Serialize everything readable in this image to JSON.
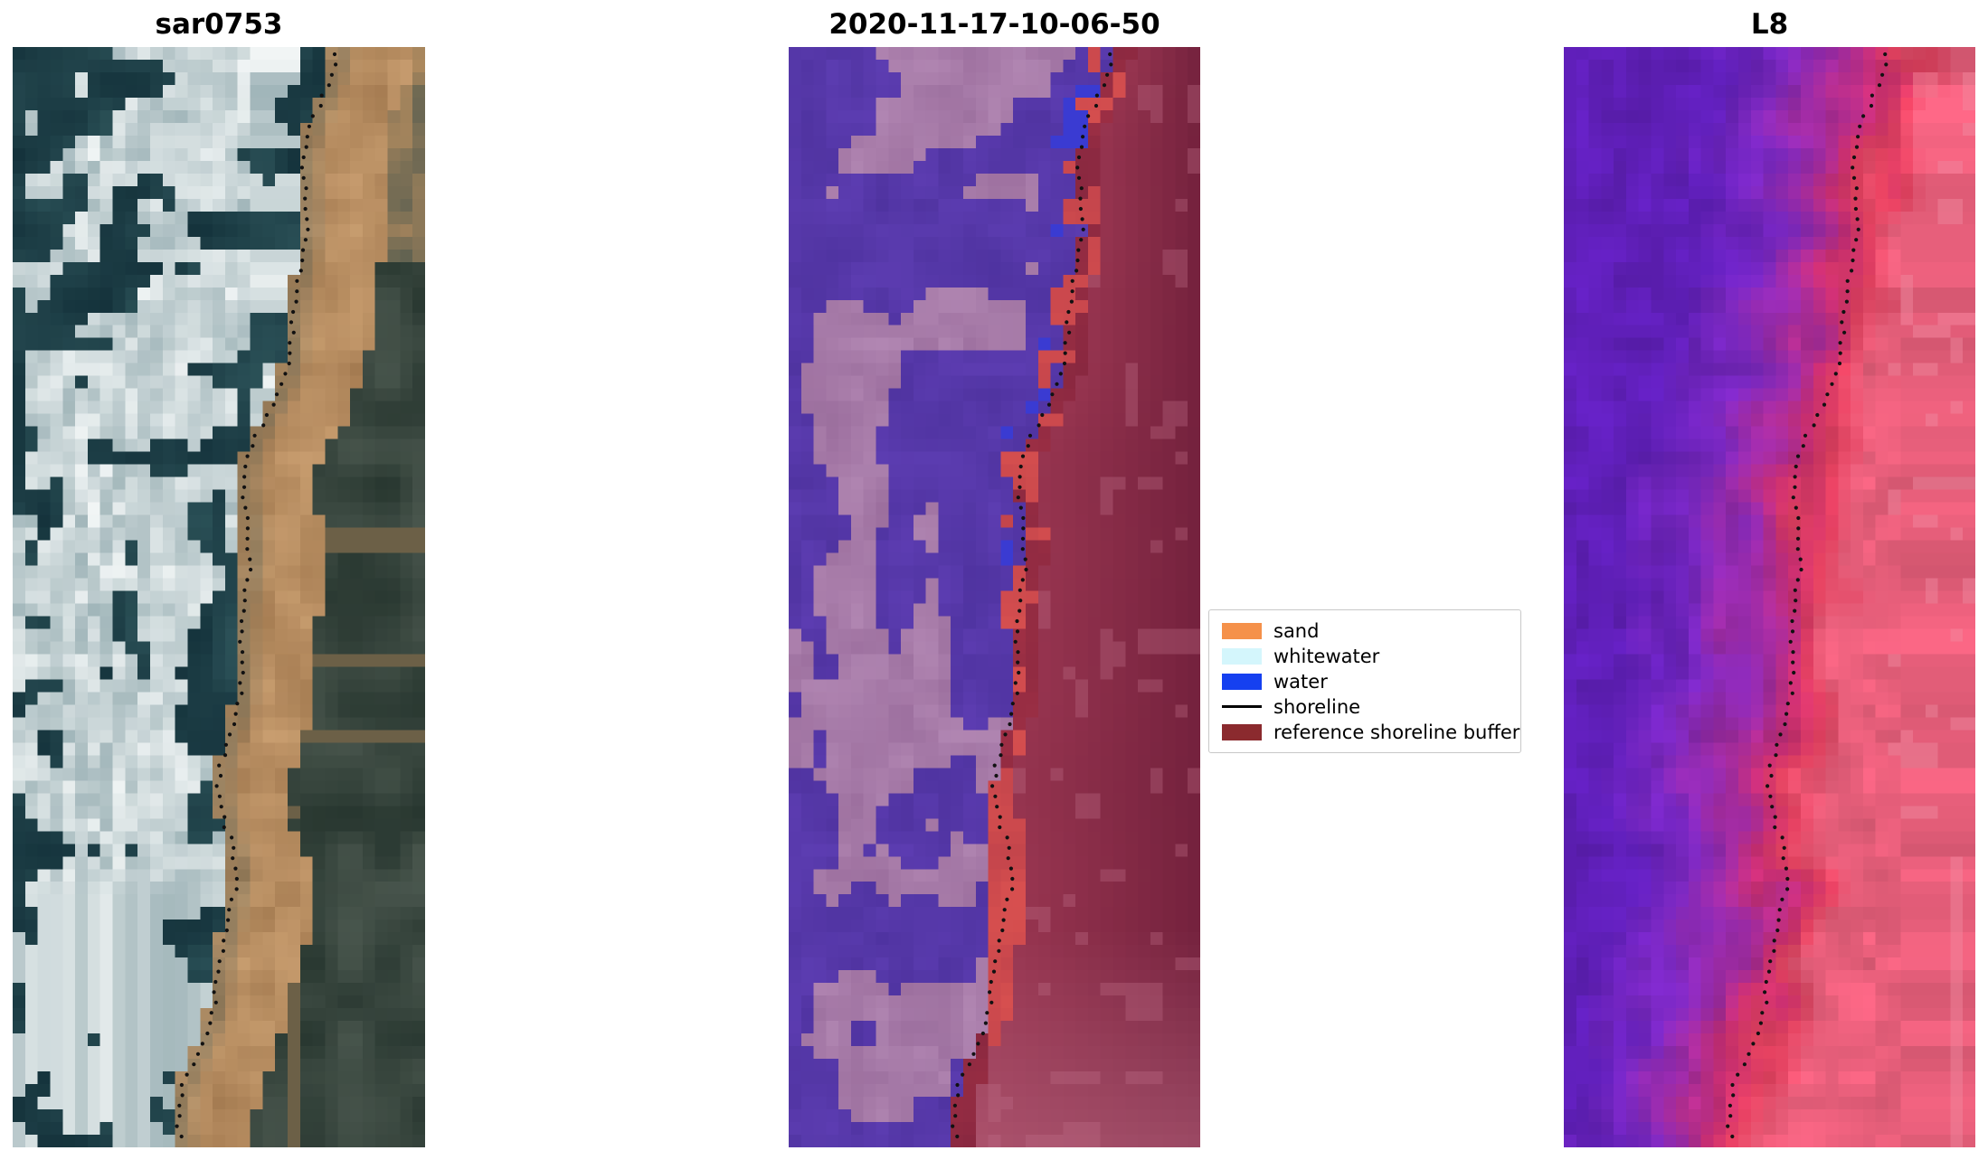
{
  "figure": {
    "background": "#ffffff",
    "panels": [
      {
        "id": "sar",
        "title": "sar0753",
        "type": "rgb-satellite-image"
      },
      {
        "id": "classification",
        "title": "2020-11-17-10-06-50",
        "type": "classification-overlay"
      },
      {
        "id": "l8",
        "title": "L8",
        "type": "false-color-image"
      }
    ],
    "legend": {
      "items": [
        {
          "label": "sand",
          "swatch": "#f5914a",
          "kind": "patch"
        },
        {
          "label": "whitewater",
          "swatch": "#d4f6fc",
          "kind": "patch"
        },
        {
          "label": "water",
          "swatch": "#1540f0",
          "kind": "patch"
        },
        {
          "label": "shoreline",
          "swatch": "#000000",
          "kind": "line"
        },
        {
          "label": "reference shoreline buffer",
          "swatch": "#8b2a2e",
          "kind": "patch"
        }
      ]
    },
    "palettes": {
      "sar": {
        "ocean_dark": "#14323b",
        "ocean_mid": "#2f565c",
        "surf_white": "#f2f6f6",
        "surf_gray": "#9fb4b8",
        "sand_light": "#c89d6f",
        "sand_dark": "#a37a50",
        "backshore_dark": "#27362f",
        "backshore_mid": "#49564d",
        "ridge_tan": "#b08a5e"
      },
      "classification": {
        "water_overlay": "#5d3db2",
        "water_deep": "#4f33a0",
        "whitewater_overlay": "#b186b2",
        "whitewater_dark": "#9c6f9e",
        "water_class_blue": "#3a3bd2",
        "sand_overlay": "#d8504f",
        "boundary_red": "#a03045",
        "buffer_mid": "#96344f",
        "buffer_dark": "#6e1e3a",
        "buffer_light": "#bc6a84"
      },
      "l8": {
        "stop0": "#5f1fb8",
        "stop1": "#7b28c0",
        "stop2": "#a02ba0",
        "stop3": "#cc2f72",
        "stop4": "#e2415f",
        "stop5": "#e85f7b",
        "highlight_pink": "#f08aa0"
      },
      "shoreline_dot": "#111111"
    }
  }
}
